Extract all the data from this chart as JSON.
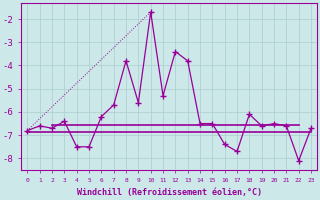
{
  "hours": [
    0,
    1,
    2,
    3,
    4,
    5,
    6,
    7,
    8,
    9,
    10,
    11,
    12,
    13,
    14,
    15,
    16,
    17,
    18,
    19,
    20,
    21,
    22,
    23
  ],
  "windchill": [
    -6.8,
    -6.6,
    -6.7,
    -6.4,
    -7.5,
    -7.5,
    -6.2,
    -5.7,
    -3.8,
    -5.6,
    -1.7,
    -5.3,
    -3.4,
    -3.8,
    -6.5,
    -6.5,
    -7.4,
    -7.7,
    -6.1,
    -6.6,
    -6.5,
    -6.6,
    -8.1,
    -6.7
  ],
  "line_color": "#990099",
  "bg_color": "#cce8e8",
  "grid_color": "#aacece",
  "xlabel": "Windchill (Refroidissement éolien,°C)",
  "ylim": [
    -8.5,
    -1.3
  ],
  "xlim": [
    -0.5,
    23.5
  ],
  "yticks": [
    -8,
    -7,
    -6,
    -5,
    -4,
    -3,
    -2
  ],
  "xtick_labels": [
    "0",
    "1",
    "2",
    "3",
    "4",
    "5",
    "6",
    "7",
    "8",
    "9",
    "10",
    "11",
    "12",
    "13",
    "14",
    "15",
    "16",
    "17",
    "18",
    "19",
    "20",
    "21",
    "22",
    "23"
  ],
  "flat_line1_y": -6.55,
  "flat_line2_y": -6.85,
  "flat_line1_x": [
    2,
    22
  ],
  "flat_line2_x": [
    0,
    23
  ]
}
